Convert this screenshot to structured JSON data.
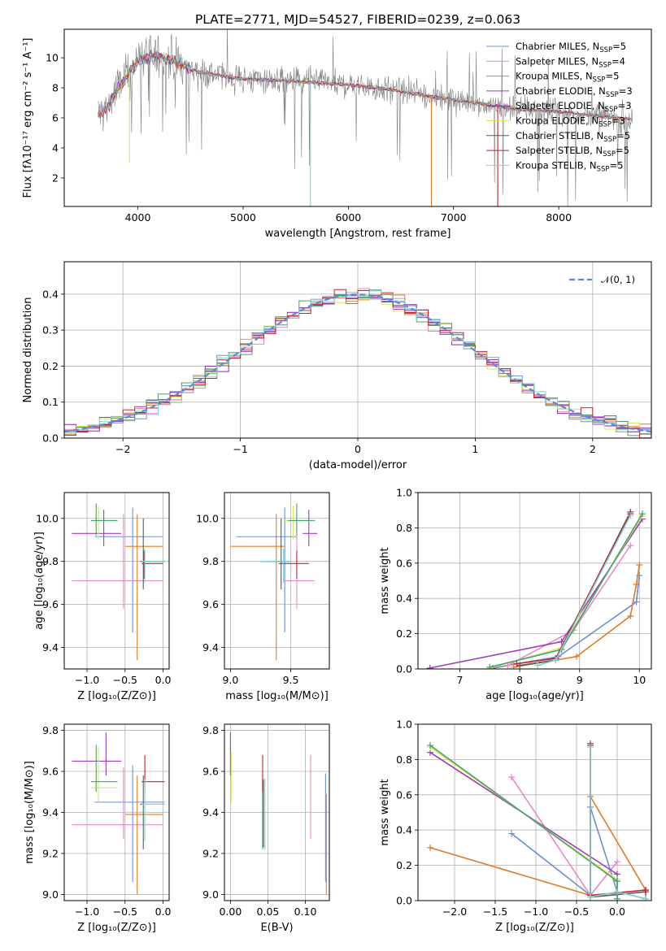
{
  "title": "PLATE=2771, MJD=54527, FIBERID=0239, z=0.063",
  "colors": {
    "chabrier_miles": "#6a8fd8",
    "salpeter_miles": "#e589c4",
    "kroupa_miles": "#e07b28",
    "chabrier_elodie": "#9b3db8",
    "salpeter_elodie": "#8e2aa8",
    "kroupa_elodie": "#d8e85a",
    "chabrier_stelib": "#5a5a5a",
    "salpeter_stelib": "#c8202a",
    "kroupa_stelib": "#7fd4d4",
    "gaussian": "#5a8ad8",
    "data": "#808080"
  },
  "chart_data": [
    {
      "type": "line",
      "id": "spectrum",
      "title": "PLATE=2771, MJD=54527, FIBERID=0239, z=0.063",
      "xlabel": "wavelength [Angstrom, rest frame]",
      "ylabel": "Flux [fλ10⁻¹⁷ erg cm⁻² s⁻¹ A⁻¹]",
      "xlim": [
        3300,
        8880
      ],
      "ylim": [
        0.1,
        11.9
      ],
      "xticks": [
        "4000",
        "5000",
        "6000",
        "7000",
        "8000"
      ],
      "yticks": [
        "2",
        "4",
        "6",
        "8",
        "10"
      ],
      "legend": [
        {
          "label": "Chabrier MILES, N",
          "sub": "SSP",
          "tail": "=5",
          "color": "#6a8fd8"
        },
        {
          "label": "Salpeter MILES, N",
          "sub": "SSP",
          "tail": "=4",
          "color": "#e589c4"
        },
        {
          "label": "Kroupa MILES, N",
          "sub": "SSP",
          "tail": "=5",
          "color": "#e07b28"
        },
        {
          "label": "Chabrier ELODIE, N",
          "sub": "SSP",
          "tail": "=3",
          "color": "#9b3db8"
        },
        {
          "label": "Salpeter ELODIE, N",
          "sub": "SSP",
          "tail": "=3",
          "color": "#8e2aa8"
        },
        {
          "label": "Kroupa ELODIE, N",
          "sub": "SSP",
          "tail": "=3",
          "color": "#d8e85a"
        },
        {
          "label": "Chabrier STELIB, N",
          "sub": "SSP",
          "tail": "=5",
          "color": "#5a5a5a"
        },
        {
          "label": "Salpeter STELIB, N",
          "sub": "SSP",
          "tail": "=5",
          "color": "#c8202a"
        },
        {
          "label": "Kroupa STELIB, N",
          "sub": "SSP",
          "tail": "=5",
          "color": "#7fd4d4"
        }
      ],
      "continuum": {
        "x": [
          3620,
          3700,
          3800,
          3900,
          4000,
          4100,
          4200,
          4300,
          4400,
          4500,
          4700,
          5000,
          5300,
          5600,
          6000,
          6400,
          6800,
          7200,
          7400,
          7600,
          8000,
          8400,
          8700
        ],
        "y": [
          6.2,
          6.6,
          7.8,
          8.8,
          9.9,
          10.0,
          10.1,
          9.9,
          9.6,
          9.2,
          8.9,
          8.6,
          8.5,
          8.4,
          8.2,
          7.9,
          7.4,
          7.0,
          6.8,
          6.6,
          6.4,
          6.1,
          5.9
        ]
      }
    },
    {
      "type": "line",
      "id": "residuals",
      "xlabel": "(data-model)/error",
      "ylabel": "Normed distribution",
      "xlim": [
        -2.5,
        2.5
      ],
      "ylim": [
        0.0,
        0.49
      ],
      "xticks": [
        "−2",
        "−1",
        "0",
        "1",
        "2"
      ],
      "yticks": [
        "0.0",
        "0.1",
        "0.2",
        "0.3",
        "0.4"
      ],
      "legend_label": "𝒩(0, 1)",
      "series": [
        {
          "name": "𝒩(0, 1)",
          "mean": 0,
          "sigma": 1
        }
      ],
      "bin_width": 0.1
    },
    {
      "type": "scatter",
      "id": "age_vs_Z",
      "xlabel": "Z [log₁₀(Z/Z⊙)]",
      "ylabel": "age  [log₁₀(age/yr)]",
      "xlim": [
        -1.3,
        0.08
      ],
      "ylim": [
        9.3,
        10.12
      ],
      "xticks": [
        "−1.0",
        "−0.5",
        "0.0"
      ],
      "yticks": [
        "9.4",
        "9.6",
        "9.8",
        "10.0"
      ]
    },
    {
      "type": "scatter",
      "id": "age_vs_mass",
      "xlabel": "mass [log₁₀(M/M⊙)]",
      "ylabel": "",
      "xlim": [
        8.95,
        9.82
      ],
      "ylim": [
        9.3,
        10.12
      ],
      "xticks": [
        "9.0",
        "9.5"
      ],
      "yticks": [
        "9.4",
        "9.6",
        "9.8",
        "10.0"
      ]
    },
    {
      "type": "line",
      "id": "mw_vs_age",
      "xlabel": "age  [log₁₀(age/yr)]",
      "ylabel": "mass weight",
      "xlim": [
        6.3,
        10.2
      ],
      "ylim": [
        0.0,
        1.0
      ],
      "xticks": [
        "7",
        "8",
        "9",
        "10"
      ],
      "yticks": [
        "0.0",
        "0.2",
        "0.4",
        "0.6",
        "0.8",
        "1.0"
      ],
      "series": [
        {
          "color": "#6a8fd8",
          "x": [
            7.55,
            8.65,
            9.95,
            10.0
          ],
          "y": [
            0.005,
            0.07,
            0.38,
            0.53
          ]
        },
        {
          "color": "#e589c4",
          "x": [
            7.8,
            8.9,
            9.85
          ],
          "y": [
            0.02,
            0.22,
            0.7
          ]
        },
        {
          "color": "#e07b28",
          "x": [
            7.9,
            8.95,
            9.85,
            9.95,
            10.0
          ],
          "y": [
            0.01,
            0.07,
            0.3,
            0.48,
            0.59
          ]
        },
        {
          "color": "#9b3db8",
          "x": [
            6.5,
            8.7,
            10.05
          ],
          "y": [
            0.005,
            0.155,
            0.85
          ]
        },
        {
          "color": "#d8e85a",
          "x": [
            7.5,
            8.7,
            10.05
          ],
          "y": [
            0.005,
            0.12,
            0.87
          ]
        },
        {
          "color": "#4aa06a",
          "x": [
            7.5,
            8.7,
            10.05
          ],
          "y": [
            0.01,
            0.11,
            0.88
          ]
        },
        {
          "color": "#5a5a5a",
          "x": [
            8.0,
            8.6,
            9.85
          ],
          "y": [
            0.02,
            0.05,
            0.89
          ]
        },
        {
          "color": "#c8202a",
          "x": [
            7.95,
            8.6,
            9.85
          ],
          "y": [
            0.03,
            0.06,
            0.88
          ]
        },
        {
          "color": "#7fd4d4",
          "x": [
            8.3,
            8.6,
            9.85
          ],
          "y": [
            0.02,
            0.05,
            0.87
          ]
        }
      ]
    },
    {
      "type": "scatter",
      "id": "mass_vs_Z",
      "xlabel": "Z [log₁₀(Z/Z⊙)]",
      "ylabel": "mass [log₁₀(M/M⊙)]",
      "xlim": [
        -1.3,
        0.08
      ],
      "ylim": [
        8.97,
        9.83
      ],
      "xticks": [
        "−1.0",
        "−0.5",
        "0.0"
      ],
      "yticks": [
        "9.0",
        "9.2",
        "9.4",
        "9.6",
        "9.8"
      ]
    },
    {
      "type": "scatter",
      "id": "mass_vs_ebv",
      "xlabel": "E(B-V)",
      "ylabel": "",
      "xlim": [
        -0.008,
        0.132
      ],
      "ylim": [
        8.97,
        9.83
      ],
      "xticks": [
        "0.00",
        "0.05",
        "0.10"
      ],
      "yticks": [
        "9.0",
        "9.2",
        "9.4",
        "9.6",
        "9.8"
      ]
    },
    {
      "type": "line",
      "id": "mw_vs_Z",
      "xlabel": "Z [log₁₀(Z/Z⊙)]",
      "ylabel": "mass weight",
      "xlim": [
        -2.45,
        0.42
      ],
      "ylim": [
        0.0,
        1.0
      ],
      "xticks": [
        "−2.0",
        "−1.5",
        "−1.0",
        "−0.5",
        "0.0"
      ],
      "yticks": [
        "0.0",
        "0.2",
        "0.4",
        "0.6",
        "0.8",
        "1.0"
      ],
      "series": [
        {
          "color": "#6a8fd8",
          "x": [
            -1.3,
            -0.33,
            -0.33,
            0.0,
            0.35
          ],
          "y": [
            0.38,
            0.03,
            0.53,
            0.05,
            0.01
          ]
        },
        {
          "color": "#e589c4",
          "x": [
            -1.3,
            -0.33,
            0.0
          ],
          "y": [
            0.7,
            0.03,
            0.22
          ]
        },
        {
          "color": "#e07b28",
          "x": [
            -2.3,
            -0.33,
            -0.33,
            0.35,
            0.35
          ],
          "y": [
            0.3,
            0.03,
            0.59,
            0.06,
            0.01
          ]
        },
        {
          "color": "#9b3db8",
          "x": [
            -2.3,
            0.0,
            0.0
          ],
          "y": [
            0.84,
            0.15,
            0.01
          ]
        },
        {
          "color": "#d8e85a",
          "x": [
            -2.3,
            0.0,
            0.0
          ],
          "y": [
            0.87,
            0.12,
            0.01
          ]
        },
        {
          "color": "#4aa06a",
          "x": [
            -2.3,
            0.0,
            0.0
          ],
          "y": [
            0.88,
            0.11,
            0.01
          ]
        },
        {
          "color": "#5a5a5a",
          "x": [
            -0.33,
            -0.33,
            0.35
          ],
          "y": [
            0.89,
            0.02,
            0.05
          ]
        },
        {
          "color": "#c8202a",
          "x": [
            -0.33,
            -0.33,
            0.35
          ],
          "y": [
            0.88,
            0.03,
            0.06
          ]
        },
        {
          "color": "#7fd4d4",
          "x": [
            -0.33,
            -0.33,
            0.0,
            0.35
          ],
          "y": [
            0.87,
            0.02,
            0.05,
            0.01
          ]
        }
      ]
    }
  ]
}
